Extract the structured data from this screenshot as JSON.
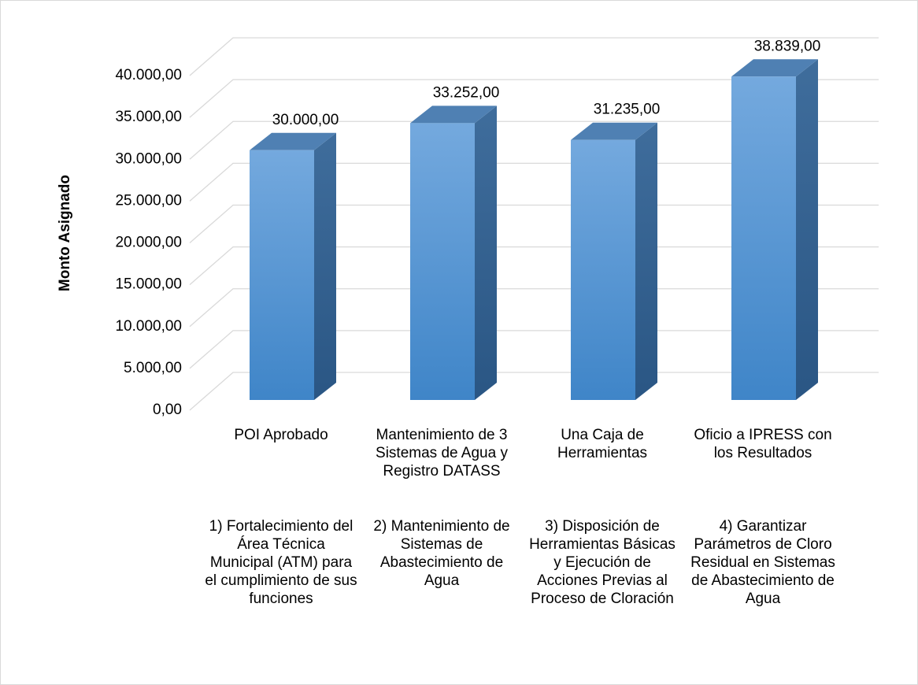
{
  "chart_data": {
    "type": "bar3d",
    "y_label": "Monto Asignado",
    "categories": [
      "POI Aprobado",
      "Mantenimiento de 3 Sistemas de Agua y Registro DATASS",
      "Una Caja de Herramientas",
      "Oficio a IPRESS con los Resultados"
    ],
    "groups": [
      "1) Fortalecimiento del Área Técnica Municipal (ATM) para el cumplimiento de sus funciones",
      "2) Mantenimiento de Sistemas de Abastecimiento de Agua",
      "3) Disposición de Herramientas Básicas y Ejecución de Acciones Previas al Proceso de Cloración",
      "4) Garantizar Parámetros de Cloro Residual en Sistemas de Abastecimiento de Agua"
    ],
    "values": [
      30000,
      33252,
      31235,
      38839
    ],
    "value_labels": [
      "30.000,00",
      "33.252,00",
      "31.235,00",
      "38.839,00"
    ],
    "color": "#5b9bd5",
    "ylim": [
      0,
      40000
    ],
    "yticks": [
      {
        "value": 0,
        "label": "0,00"
      },
      {
        "value": 5000,
        "label": "5.000,00"
      },
      {
        "value": 10000,
        "label": "10.000,00"
      },
      {
        "value": 15000,
        "label": "15.000,00"
      },
      {
        "value": 20000,
        "label": "20.000,00"
      },
      {
        "value": 25000,
        "label": "25.000,00"
      },
      {
        "value": 30000,
        "label": "30.000,00"
      },
      {
        "value": 35000,
        "label": "35.000,00"
      },
      {
        "value": 40000,
        "label": "40.000,00"
      }
    ],
    "grid": true
  }
}
